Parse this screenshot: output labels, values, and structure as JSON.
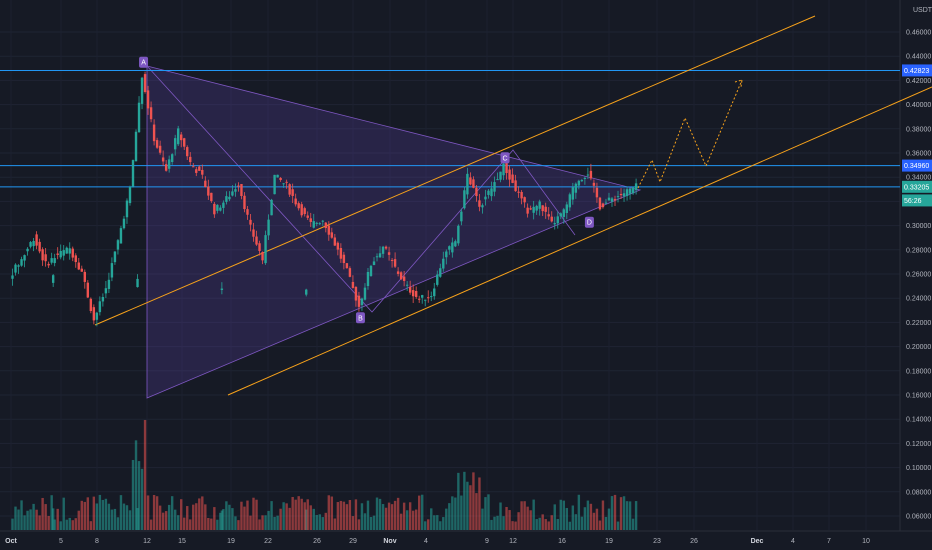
{
  "chart_data": {
    "type": "candlestick",
    "currency_label": "USDT",
    "y_ticks": [
      "0.46000",
      "0.44000",
      "0.42000",
      "0.40000",
      "0.38000",
      "0.36000",
      "0.34000",
      "0.32000",
      "0.30000",
      "0.28000",
      "0.26000",
      "0.24000",
      "0.22000",
      "0.20000",
      "0.18000",
      "0.16000",
      "0.14000",
      "0.12000",
      "0.10000",
      "0.08000",
      "0.06000"
    ],
    "x_ticks": [
      "Oct",
      "5",
      "8",
      "12",
      "15",
      "19",
      "22",
      "26",
      "29",
      "Nov",
      "4",
      "9",
      "12",
      "16",
      "19",
      "23",
      "26",
      "Dec",
      "4",
      "7",
      "10"
    ],
    "bold_ticks": [
      "Oct",
      "Nov",
      "Dec"
    ],
    "badges": [
      {
        "text": "0.42823",
        "color": "#2962ff",
        "value": 0.42823
      },
      {
        "text": "0.34960",
        "color": "#2962ff",
        "value": 0.3496
      },
      {
        "text": "0.33205",
        "color": "#26a69a",
        "value": 0.33205
      },
      {
        "text": "56:26",
        "color": "#26a69a",
        "value": 0.3208
      }
    ],
    "horizontal_lines": [
      0.42823,
      0.3496,
      0.33205
    ],
    "pattern_points": [
      {
        "label": "A",
        "x": "Oct 12",
        "y": 0.428
      },
      {
        "label": "B",
        "x": "Oct 30",
        "y": 0.23
      },
      {
        "label": "C",
        "x": "Nov 11",
        "y": 0.349
      },
      {
        "label": "D",
        "x": "Nov 18",
        "y": 0.309
      }
    ],
    "price_series": [
      [
        "Sep 30",
        0.243
      ],
      [
        "Oct 1",
        0.258
      ],
      [
        "Oct 2",
        0.272
      ],
      [
        "Oct 3",
        0.29
      ],
      [
        "Oct 4",
        0.268
      ],
      [
        "Oct 5",
        0.276
      ],
      [
        "Oct 6",
        0.281
      ],
      [
        "Oct 7",
        0.262
      ],
      [
        "Oct 8",
        0.222
      ],
      [
        "Oct 9",
        0.248
      ],
      [
        "Oct 10",
        0.287
      ],
      [
        "Oct 11",
        0.33
      ],
      [
        "Oct 12",
        0.425
      ],
      [
        "Oct 13",
        0.372
      ],
      [
        "Oct 14",
        0.345
      ],
      [
        "Oct 15",
        0.378
      ],
      [
        "Oct 16",
        0.352
      ],
      [
        "Oct 17",
        0.34
      ],
      [
        "Oct 18",
        0.312
      ],
      [
        "Oct 19",
        0.322
      ],
      [
        "Oct 20",
        0.335
      ],
      [
        "Oct 21",
        0.298
      ],
      [
        "Oct 22",
        0.272
      ],
      [
        "Oct 23",
        0.341
      ],
      [
        "Oct 24",
        0.333
      ],
      [
        "Oct 25",
        0.315
      ],
      [
        "Oct 26",
        0.301
      ],
      [
        "Oct 27",
        0.305
      ],
      [
        "Oct 28",
        0.285
      ],
      [
        "Oct 29",
        0.262
      ],
      [
        "Oct 30",
        0.233
      ],
      [
        "Oct 31",
        0.268
      ],
      [
        "Nov 1",
        0.283
      ],
      [
        "Nov 2",
        0.265
      ],
      [
        "Nov 3",
        0.249
      ],
      [
        "Nov 4",
        0.239
      ],
      [
        "Nov 5",
        0.243
      ],
      [
        "Nov 6",
        0.274
      ],
      [
        "Nov 7",
        0.287
      ],
      [
        "Nov 8",
        0.342
      ],
      [
        "Nov 9",
        0.316
      ],
      [
        "Nov 10",
        0.331
      ],
      [
        "Nov 11",
        0.349
      ],
      [
        "Nov 12",
        0.33
      ],
      [
        "Nov 13",
        0.312
      ],
      [
        "Nov 14",
        0.318
      ],
      [
        "Nov 15",
        0.301
      ],
      [
        "Nov 16",
        0.311
      ],
      [
        "Nov 17",
        0.336
      ],
      [
        "Nov 18",
        0.344
      ],
      [
        "Nov 19",
        0.316
      ],
      [
        "Nov 20",
        0.322
      ],
      [
        "Nov 21",
        0.327
      ],
      [
        "Nov 22",
        0.332
      ]
    ]
  }
}
